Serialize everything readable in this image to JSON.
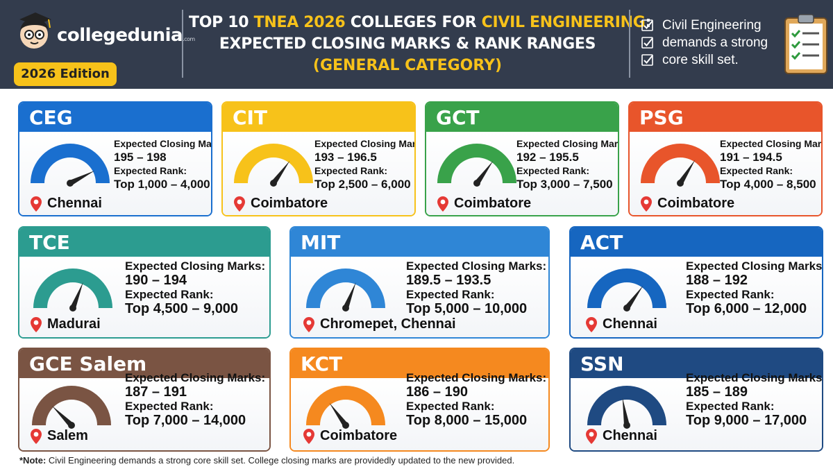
{
  "brand": {
    "name": "collegedunia",
    "suffix": ".com",
    "edition": "2026 Edition"
  },
  "title": {
    "line1_pre": "TOP 10 ",
    "line1_hl1": "TNEA 2026",
    "line1_mid": " COLLEGES FOR ",
    "line1_hl2": "CIVIL ENGINEERING",
    "line1_post": ":",
    "line2": "EXPECTED CLOSING MARKS & RANK RANGES",
    "line3": "(GENERAL CATEGORY)"
  },
  "checklist": [
    "Civil Engineering",
    "demands a strong",
    "core skill set."
  ],
  "labels": {
    "marks": "Expected Closing Marks:",
    "rank": "Expected Rank:"
  },
  "colleges": [
    {
      "name": "CEG",
      "marks": "195 – 198",
      "rank": "Top 1,000 – 4,000",
      "location": "Chennai",
      "color": "#1a6fcf",
      "needle": 0.85
    },
    {
      "name": "CIT",
      "marks": "193 – 196.5",
      "rank": "Top 2,500 – 6,000",
      "location": "Coimbatore",
      "color": "#f7c21a",
      "needle": 0.7
    },
    {
      "name": "GCT",
      "marks": "192 – 195.5",
      "rank": "Top 3,000 – 7,500",
      "location": "Coimbatore",
      "color": "#39a24a",
      "needle": 0.7
    },
    {
      "name": "PSG",
      "marks": "191 – 194.5",
      "rank": "Top 4,000 – 8,500",
      "location": "Coimbatore",
      "color": "#e8552b",
      "needle": 0.68
    },
    {
      "name": "TCE",
      "marks": "190 – 194",
      "rank": "Top 4,500 – 9,000",
      "location": "Madurai",
      "color": "#2c9c90",
      "needle": 0.62
    },
    {
      "name": "MIT",
      "marks": "189.5 – 193.5",
      "rank": "Top 5,000 – 10,000",
      "location": "Chromepet, Chennai",
      "color": "#2f86d6",
      "needle": 0.62
    },
    {
      "name": "ACT",
      "marks": "188 – 192",
      "rank": "Top 6,000 – 12,000",
      "location": "Chennai",
      "color": "#1666c0",
      "needle": 0.7
    },
    {
      "name": "GCE Salem",
      "marks": "187 – 191",
      "rank": "Top 7,000 – 14,000",
      "location": "Salem",
      "color": "#7a5443",
      "needle": 0.25
    },
    {
      "name": "KCT",
      "marks": "186 – 190",
      "rank": "Top 8,000 – 15,000",
      "location": "Coimbatore",
      "color": "#f5891f",
      "needle": 0.3
    },
    {
      "name": "SSN",
      "marks": "185 – 189",
      "rank": "Top 9,000 – 17,000",
      "location": "Chennai",
      "color": "#1f4a82",
      "needle": 0.45
    }
  ],
  "note": {
    "label": "*Note:",
    "text": " Civil Engineering demands a strong core skill set. College closing marks are providedly updated to the new provided."
  }
}
